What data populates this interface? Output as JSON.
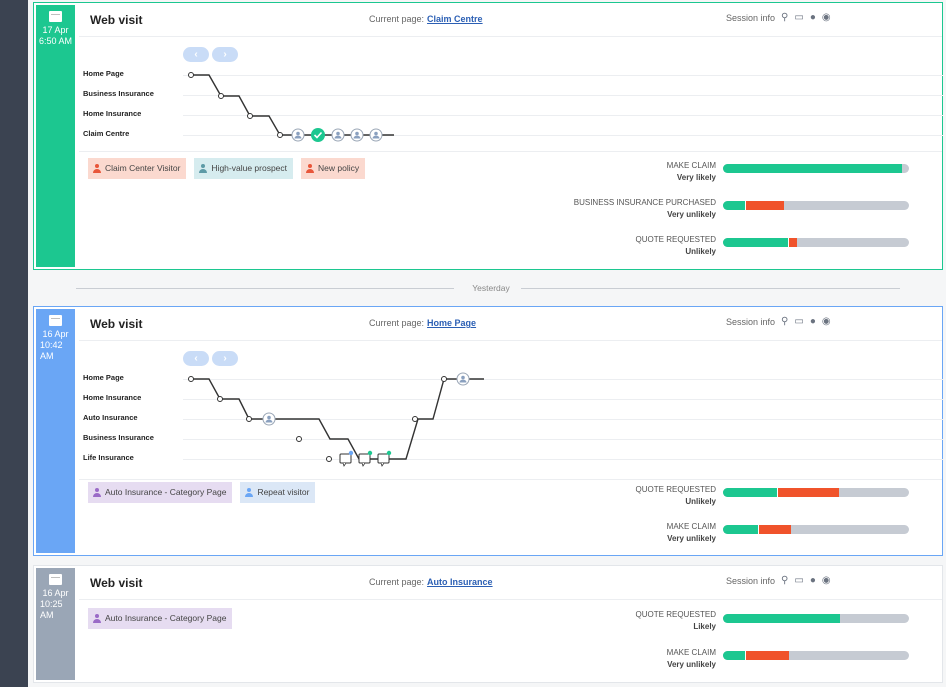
{
  "colors": {
    "green": "#1cc790",
    "blue": "#6aa6f5",
    "grey": "#9aa6b6",
    "bar_green": "#1cc790",
    "bar_red": "#f0532b",
    "bar_grey": "#c6cbd3"
  },
  "visits": [
    {
      "date": "17 Apr",
      "time": "6:50 AM",
      "title": "Web visit",
      "current_page_label": "Current page:",
      "current_page": "Claim Centre",
      "session_label": "Session info",
      "pages": [
        "Home Page",
        "Business Insurance",
        "Home Insurance",
        "Claim Centre"
      ],
      "tags": [
        {
          "label": "Claim Center Visitor",
          "icon": "person-icon"
        },
        {
          "label": "High-value prospect",
          "icon": "person-icon"
        },
        {
          "label": "New policy",
          "icon": "person-icon"
        }
      ],
      "predictions": [
        {
          "name": "MAKE CLAIM",
          "value": "Very likely",
          "green": 0.96,
          "red": 0
        },
        {
          "name": "BUSINESS INSURANCE PURCHASED",
          "value": "Very unlikely",
          "green": 0.12,
          "red": 0.2
        },
        {
          "name": "QUOTE REQUESTED",
          "value": "Unlikely",
          "green": 0.35,
          "red": 0.04
        }
      ]
    },
    {
      "date": "16 Apr",
      "time": "10:42 AM",
      "title": "Web visit",
      "current_page_label": "Current page:",
      "current_page": "Home Page",
      "session_label": "Session info",
      "pages": [
        "Home Page",
        "Home Insurance",
        "Auto Insurance",
        "Business Insurance",
        "Life Insurance"
      ],
      "tags": [
        {
          "label": "Auto Insurance - Category Page",
          "icon": "person-icon"
        },
        {
          "label": "Repeat visitor",
          "icon": "person-icon"
        }
      ],
      "predictions": [
        {
          "name": "QUOTE REQUESTED",
          "value": "Unlikely",
          "green": 0.29,
          "red": 0.33
        },
        {
          "name": "MAKE CLAIM",
          "value": "Very unlikely",
          "green": 0.19,
          "red": 0.17
        }
      ]
    },
    {
      "date": "16 Apr",
      "time": "10:25 AM",
      "title": "Web visit",
      "current_page_label": "Current page:",
      "current_page": "Auto Insurance",
      "session_label": "Session info",
      "tags": [
        {
          "label": "Auto Insurance - Category Page",
          "icon": "person-icon"
        }
      ],
      "predictions": [
        {
          "name": "QUOTE REQUESTED",
          "value": "Likely",
          "green": 0.63,
          "red": 0
        },
        {
          "name": "MAKE CLAIM",
          "value": "Very unlikely",
          "green": 0.12,
          "red": 0.23
        }
      ]
    }
  ],
  "separator": "Yesterday",
  "icons": [
    "calendar-icon",
    "location-icon",
    "desktop-icon",
    "apple-icon",
    "chrome-icon",
    "chevron-left-icon",
    "chevron-right-icon",
    "person-icon",
    "check-icon",
    "chat-icon"
  ]
}
